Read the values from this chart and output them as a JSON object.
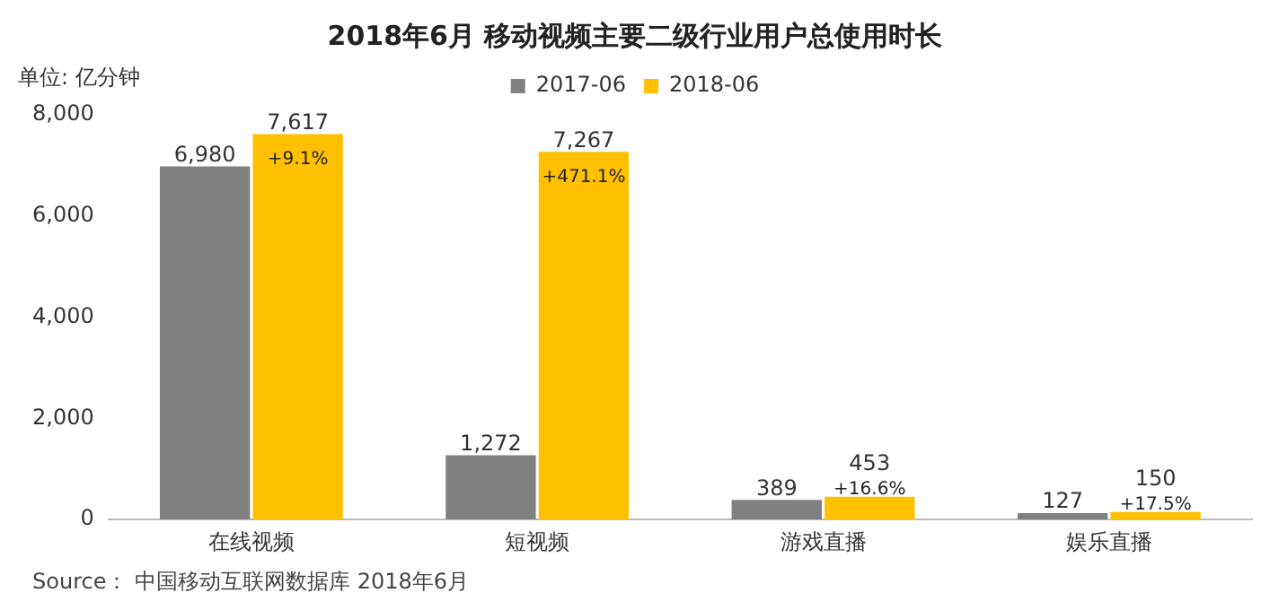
{
  "chart_data": {
    "type": "bar",
    "title": "2018年6月 移动视频主要二级行业用户总使用时长",
    "ylabel": "单位: 亿分钟",
    "categories": [
      "在线视频",
      "短视频",
      "游戏直播",
      "娱乐直播"
    ],
    "series": [
      {
        "name": "2017-06",
        "color": "#808080",
        "values": [
          6980,
          1272,
          389,
          127
        ],
        "value_labels": [
          "6,980",
          "1,272",
          "389",
          "127"
        ]
      },
      {
        "name": "2018-06",
        "color": "#ffc000",
        "values": [
          7617,
          7267,
          453,
          150
        ],
        "value_labels": [
          "7,617",
          "7,267",
          "453",
          "150"
        ]
      }
    ],
    "ylim": [
      0,
      8000
    ],
    "yticks": [
      0,
      {
        "value": 2000,
        "label": "2,000"
      },
      {
        "value": 4000,
        "label": "4,000"
      },
      {
        "value": 6000,
        "label": "6,000"
      },
      {
        "value": 8000,
        "label": "8,000"
      }
    ],
    "grid": false,
    "legend": "top",
    "annotations": [
      {
        "text": "+9.1%",
        "x": "在线视频",
        "y": 7617
      },
      {
        "text": "+471.1%",
        "x": "短视频",
        "y": 7267
      },
      {
        "text": "+16.6%",
        "x": "游戏直播",
        "y": 453
      },
      {
        "text": "+17.5%",
        "x": "娱乐直播",
        "y": 150
      },
      "Source： 中国移动互联网数据库 2018年6月"
    ]
  }
}
